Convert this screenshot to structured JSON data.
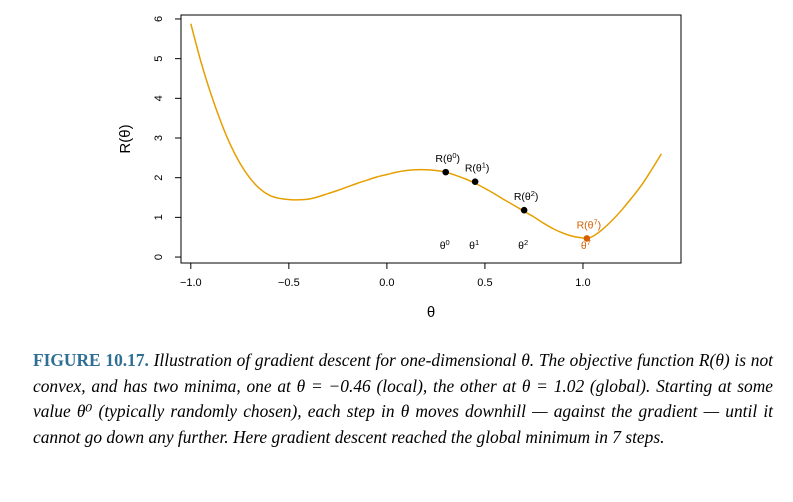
{
  "chart_data": {
    "type": "line",
    "xlabel": "θ",
    "ylabel": "R(θ)",
    "xlim": [
      -1.05,
      1.5
    ],
    "ylim": [
      -0.15,
      6.1
    ],
    "xticks": [
      -1.0,
      -0.5,
      0.0,
      0.5,
      1.0
    ],
    "xtick_labels": [
      "−1.0",
      "−0.5",
      "0.0",
      "0.5",
      "1.0"
    ],
    "yticks": [
      0,
      1,
      2,
      3,
      4,
      5,
      6
    ],
    "ytick_labels": [
      "0",
      "1",
      "2",
      "3",
      "4",
      "5",
      "6"
    ],
    "curve": {
      "color": "#E69F00",
      "x": [
        -1.0,
        -0.95,
        -0.9,
        -0.85,
        -0.8,
        -0.75,
        -0.7,
        -0.65,
        -0.6,
        -0.55,
        -0.5,
        -0.46,
        -0.4,
        -0.35,
        -0.3,
        -0.25,
        -0.2,
        -0.15,
        -0.1,
        -0.05,
        0.0,
        0.05,
        0.1,
        0.15,
        0.2,
        0.25,
        0.3,
        0.35,
        0.4,
        0.45,
        0.5,
        0.55,
        0.6,
        0.65,
        0.7,
        0.75,
        0.8,
        0.85,
        0.9,
        0.95,
        1.0,
        1.02,
        1.05,
        1.1,
        1.15,
        1.2,
        1.25,
        1.3,
        1.35,
        1.4
      ],
      "y": [
        5.88,
        4.95,
        4.15,
        3.45,
        2.85,
        2.37,
        2.0,
        1.73,
        1.56,
        1.48,
        1.45,
        1.44,
        1.46,
        1.52,
        1.6,
        1.68,
        1.77,
        1.86,
        1.94,
        2.02,
        2.08,
        2.14,
        2.18,
        2.2,
        2.2,
        2.18,
        2.14,
        2.06,
        1.97,
        1.86,
        1.73,
        1.59,
        1.44,
        1.3,
        1.15,
        1.01,
        0.85,
        0.71,
        0.6,
        0.52,
        0.48,
        0.47,
        0.52,
        0.7,
        0.93,
        1.2,
        1.5,
        1.82,
        2.2,
        2.6
      ]
    },
    "points": [
      {
        "x": 0.3,
        "y": 2.14,
        "label_base": "R(θ",
        "sup": "0",
        "theta_base": "θ",
        "color": "#000000"
      },
      {
        "x": 0.45,
        "y": 1.9,
        "label_base": "R(θ",
        "sup": "1",
        "theta_base": "θ",
        "color": "#000000"
      },
      {
        "x": 0.7,
        "y": 1.18,
        "label_base": "R(θ",
        "sup": "2",
        "theta_base": "θ",
        "color": "#000000"
      },
      {
        "x": 1.02,
        "y": 0.47,
        "label_base": "R(θ",
        "sup": "7",
        "theta_base": "θ",
        "color": "#D55E00"
      }
    ]
  },
  "caption": {
    "label": "FIGURE 10.17.",
    "text": "Illustration of gradient descent for one-dimensional θ. The objective function R(θ) is not convex, and has two minima, one at θ = −0.46 (local), the other at θ = 1.02 (global). Starting at some value θ⁰ (typically randomly chosen), each step in θ moves downhill — against the gradient — until it cannot go down any further. Here gradient descent reached the global minimum in 7 steps."
  }
}
